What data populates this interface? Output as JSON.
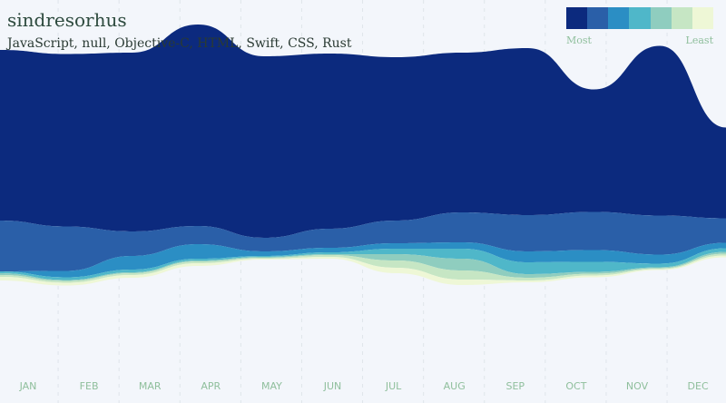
{
  "header": {
    "title": "sindresorhus",
    "subtitle": "JavaScript, null, Objective-C, HTML, Swift, CSS, Rust"
  },
  "legend": {
    "most_label": "Most",
    "least_label": "Least",
    "colors": [
      "#0c2a7e",
      "#2a5fa8",
      "#2b8ec4",
      "#4fb7c9",
      "#8fcdbf",
      "#c6e6c4",
      "#eef7d6"
    ]
  },
  "chart_data": {
    "type": "area",
    "subtype": "streamgraph",
    "categories": [
      "JAN",
      "FEB",
      "MAR",
      "APR",
      "MAY",
      "JUN",
      "JUL",
      "AUG",
      "SEP",
      "OCT",
      "NOV",
      "DEC"
    ],
    "series": [
      {
        "name": "JavaScript",
        "color": "#0c2a7e",
        "values": [
          188,
          190,
          197,
          222,
          200,
          193,
          180,
          176,
          184,
          135,
          187,
          100
        ]
      },
      {
        "name": "null",
        "color": "#2a5fa8",
        "values": [
          56,
          49,
          27,
          20,
          15,
          21,
          25,
          33,
          40,
          42,
          43,
          27
        ]
      },
      {
        "name": "Objective-C",
        "color": "#2b8ec4",
        "values": [
          0,
          7,
          15,
          16,
          5,
          5,
          6,
          7,
          12,
          13,
          10,
          6
        ]
      },
      {
        "name": "HTML",
        "color": "#4fb7c9",
        "values": [
          2,
          3,
          3,
          2,
          1,
          2,
          6,
          11,
          13,
          11,
          4,
          4
        ]
      },
      {
        "name": "Swift",
        "color": "#8fcdbf",
        "values": [
          2,
          1,
          1,
          1,
          1,
          1,
          7,
          13,
          4,
          2,
          1,
          2
        ]
      },
      {
        "name": "CSS",
        "color": "#c6e6c4",
        "values": [
          2,
          2,
          2,
          2,
          1,
          2,
          8,
          10,
          3,
          2,
          1,
          2
        ]
      },
      {
        "name": "Rust",
        "color": "#eef7d6",
        "values": [
          4,
          3,
          3,
          3,
          1,
          2,
          6,
          6,
          2,
          2,
          1,
          2
        ]
      }
    ],
    "baseline": "wiggle",
    "grid": "vertical-dashed",
    "legend_position": "top-right"
  }
}
